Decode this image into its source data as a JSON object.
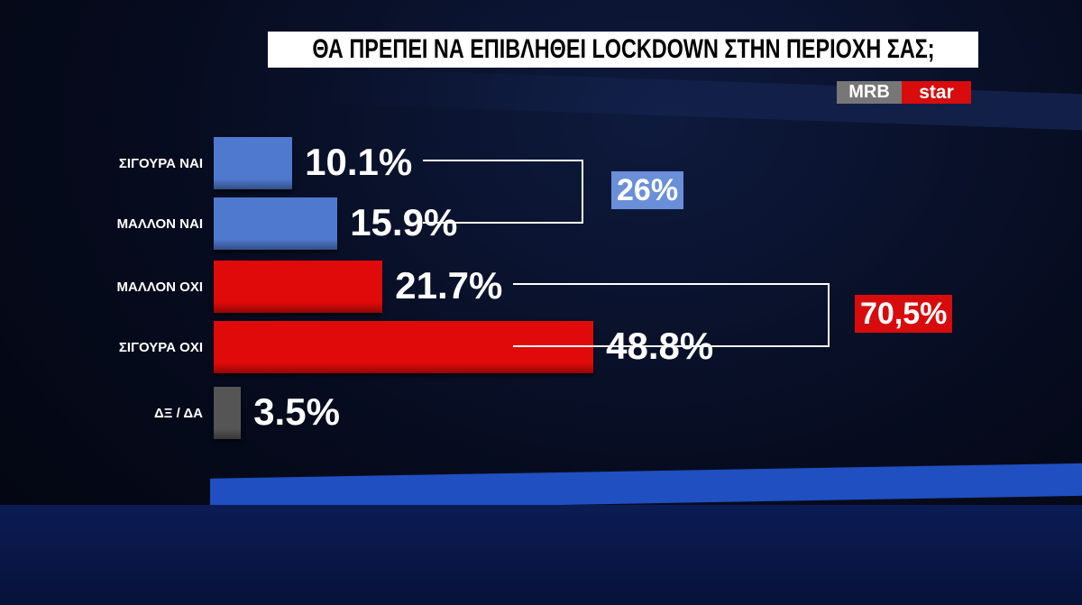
{
  "chart_data": {
    "type": "bar",
    "orientation": "horizontal",
    "title": "ΘΑ ΠΡΕΠΕΙ ΝΑ ΕΠΙΒΛΗΘΕΙ LOCKDOWN ΣΤΗΝ ΠΕΡΙΟΧΗ ΣΑΣ;",
    "logo": {
      "left": "MRB",
      "right": "star"
    },
    "categories": [
      "ΣΙΓΟΥΡΑ ΝΑΙ",
      "ΜΑΛΛΟΝ ΝΑΙ",
      "ΜΑΛΛΟΝ ΟΧΙ",
      "ΣΙΓΟΥΡΑ ΟΧΙ",
      "ΔΞ / ΔΑ"
    ],
    "values": [
      10.1,
      15.9,
      21.7,
      48.8,
      3.5
    ],
    "value_labels": [
      "10.1%",
      "15.9%",
      "21.7%",
      "48.8%",
      "3.5%"
    ],
    "colors": [
      "#4f79cf",
      "#4f79cf",
      "#e00a0a",
      "#e00a0a",
      "#555555"
    ],
    "group_totals": [
      {
        "value": 26,
        "label": "26%",
        "color": "#6a8fd8"
      },
      {
        "value": 70.5,
        "label": "70,5%",
        "color": "#d80c0c"
      }
    ]
  }
}
